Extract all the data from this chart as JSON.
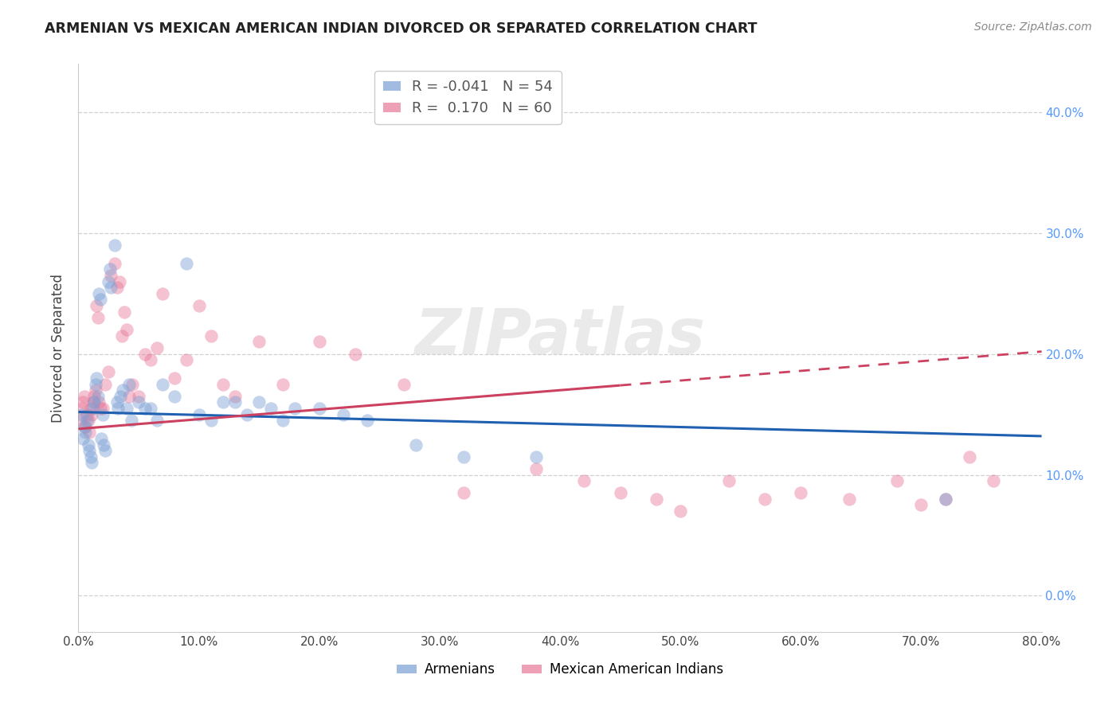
{
  "title": "ARMENIAN VS MEXICAN AMERICAN INDIAN DIVORCED OR SEPARATED CORRELATION CHART",
  "source": "Source: ZipAtlas.com",
  "ylabel": "Divorced or Separated",
  "xlim": [
    0.0,
    0.8
  ],
  "ylim": [
    -0.03,
    0.44
  ],
  "watermark": "ZIPatlas",
  "legend": {
    "armenians_label": "Armenians",
    "mexican_label": "Mexican American Indians",
    "R_armenians": "-0.041",
    "N_armenians": "54",
    "R_mexican": "0.170",
    "N_mexican": "60"
  },
  "color_armenians": "#7B9FD4",
  "color_mexican": "#E87898",
  "color_line_armenians": "#2060B0",
  "color_line_mexican": "#CC4060",
  "background_color": "#ffffff",
  "grid_color": "#d0d0d0",
  "armenians_x": [
    0.003,
    0.004,
    0.005,
    0.006,
    0.007,
    0.008,
    0.009,
    0.01,
    0.011,
    0.012,
    0.013,
    0.014,
    0.015,
    0.016,
    0.017,
    0.018,
    0.019,
    0.02,
    0.021,
    0.022,
    0.025,
    0.026,
    0.027,
    0.03,
    0.032,
    0.033,
    0.035,
    0.037,
    0.04,
    0.042,
    0.044,
    0.05,
    0.055,
    0.06,
    0.065,
    0.07,
    0.08,
    0.09,
    0.1,
    0.11,
    0.12,
    0.13,
    0.14,
    0.15,
    0.16,
    0.17,
    0.18,
    0.2,
    0.22,
    0.24,
    0.28,
    0.32,
    0.38,
    0.72
  ],
  "armenians_y": [
    0.15,
    0.13,
    0.14,
    0.135,
    0.145,
    0.125,
    0.12,
    0.115,
    0.11,
    0.155,
    0.16,
    0.175,
    0.18,
    0.165,
    0.25,
    0.245,
    0.13,
    0.15,
    0.125,
    0.12,
    0.26,
    0.27,
    0.255,
    0.29,
    0.16,
    0.155,
    0.165,
    0.17,
    0.155,
    0.175,
    0.145,
    0.16,
    0.155,
    0.155,
    0.145,
    0.175,
    0.165,
    0.275,
    0.15,
    0.145,
    0.16,
    0.16,
    0.15,
    0.16,
    0.155,
    0.145,
    0.155,
    0.155,
    0.15,
    0.145,
    0.125,
    0.115,
    0.115,
    0.08
  ],
  "mexican_x": [
    0.002,
    0.003,
    0.004,
    0.005,
    0.006,
    0.007,
    0.008,
    0.009,
    0.01,
    0.011,
    0.012,
    0.013,
    0.014,
    0.015,
    0.016,
    0.017,
    0.018,
    0.02,
    0.022,
    0.025,
    0.027,
    0.03,
    0.032,
    0.034,
    0.036,
    0.038,
    0.04,
    0.042,
    0.045,
    0.05,
    0.055,
    0.06,
    0.065,
    0.07,
    0.08,
    0.09,
    0.1,
    0.11,
    0.12,
    0.13,
    0.15,
    0.17,
    0.2,
    0.23,
    0.27,
    0.32,
    0.38,
    0.42,
    0.45,
    0.48,
    0.5,
    0.54,
    0.57,
    0.6,
    0.64,
    0.68,
    0.7,
    0.72,
    0.74,
    0.76
  ],
  "mexican_y": [
    0.145,
    0.155,
    0.16,
    0.165,
    0.14,
    0.15,
    0.145,
    0.135,
    0.155,
    0.15,
    0.16,
    0.165,
    0.17,
    0.24,
    0.23,
    0.16,
    0.155,
    0.155,
    0.175,
    0.185,
    0.265,
    0.275,
    0.255,
    0.26,
    0.215,
    0.235,
    0.22,
    0.165,
    0.175,
    0.165,
    0.2,
    0.195,
    0.205,
    0.25,
    0.18,
    0.195,
    0.24,
    0.215,
    0.175,
    0.165,
    0.21,
    0.175,
    0.21,
    0.2,
    0.175,
    0.085,
    0.105,
    0.095,
    0.085,
    0.08,
    0.07,
    0.095,
    0.08,
    0.085,
    0.08,
    0.095,
    0.075,
    0.08,
    0.115,
    0.095
  ],
  "regression_armenians": {
    "slope": -0.025,
    "intercept": 0.152
  },
  "regression_mexican": {
    "slope": 0.08,
    "intercept": 0.138
  }
}
